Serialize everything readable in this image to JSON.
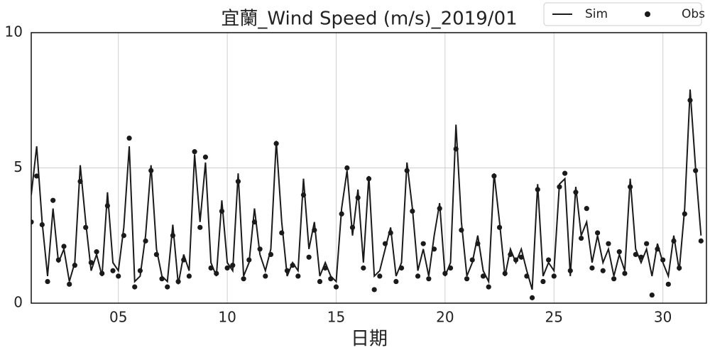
{
  "chart_data": {
    "type": "line",
    "title": "宜蘭_Wind Speed (m/s)_2019/01",
    "xlabel": "日期",
    "x": [
      1,
      1.25,
      1.5,
      1.75,
      2,
      2.25,
      2.5,
      2.75,
      3,
      3.25,
      3.5,
      3.75,
      4,
      4.25,
      4.5,
      4.75,
      5,
      5.25,
      5.5,
      5.75,
      6,
      6.25,
      6.5,
      6.75,
      7,
      7.25,
      7.5,
      7.75,
      8,
      8.25,
      8.5,
      8.75,
      9,
      9.25,
      9.5,
      9.75,
      10,
      10.25,
      10.5,
      10.75,
      11,
      11.25,
      11.5,
      11.75,
      12,
      12.25,
      12.5,
      12.75,
      13,
      13.25,
      13.5,
      13.75,
      14,
      14.25,
      14.5,
      14.75,
      15,
      15.25,
      15.5,
      15.75,
      16,
      16.25,
      16.5,
      16.75,
      17,
      17.25,
      17.5,
      17.75,
      18,
      18.25,
      18.5,
      18.75,
      19,
      19.25,
      19.5,
      19.75,
      20,
      20.25,
      20.5,
      20.75,
      21,
      21.25,
      21.5,
      21.75,
      22,
      22.25,
      22.5,
      22.75,
      23,
      23.25,
      23.5,
      23.75,
      24,
      24.25,
      24.5,
      24.75,
      25,
      25.25,
      25.5,
      25.75,
      26,
      26.25,
      26.5,
      26.75,
      27,
      27.25,
      27.5,
      27.75,
      28,
      28.25,
      28.5,
      28.75,
      29,
      29.25,
      29.5,
      29.75,
      30,
      30.25,
      30.5,
      30.75,
      31,
      31.25,
      31.5,
      31.75
    ],
    "series": [
      {
        "name": "Sim",
        "kind": "line",
        "color": "#1a1a1a",
        "values": [
          4.0,
          5.8,
          3.0,
          1.0,
          3.5,
          1.5,
          2.0,
          0.8,
          1.5,
          5.1,
          3.0,
          1.2,
          1.8,
          1.0,
          4.1,
          1.5,
          1.2,
          2.8,
          5.8,
          0.8,
          1.0,
          2.5,
          5.1,
          2.0,
          1.0,
          0.8,
          2.9,
          0.7,
          1.8,
          1.2,
          5.5,
          3.0,
          5.2,
          1.5,
          1.0,
          3.8,
          1.5,
          1.2,
          4.8,
          1.0,
          1.5,
          3.5,
          1.8,
          1.2,
          2.0,
          6.0,
          3.0,
          1.0,
          1.5,
          1.2,
          4.6,
          2.0,
          3.0,
          1.0,
          1.5,
          1.0,
          0.8,
          3.5,
          4.9,
          2.5,
          4.2,
          1.5,
          4.7,
          1.0,
          1.2,
          2.0,
          2.8,
          1.0,
          1.5,
          5.2,
          3.5,
          1.2,
          2.0,
          1.0,
          2.5,
          3.7,
          1.0,
          1.5,
          6.6,
          3.0,
          1.0,
          1.5,
          2.5,
          1.2,
          0.8,
          4.8,
          3.0,
          1.0,
          2.0,
          1.5,
          2.0,
          1.2,
          0.5,
          4.4,
          1.0,
          1.5,
          1.2,
          4.4,
          4.6,
          1.0,
          4.3,
          2.5,
          3.0,
          1.5,
          2.5,
          1.5,
          2.0,
          1.0,
          1.8,
          1.2,
          4.6,
          2.0,
          1.5,
          2.0,
          1.0,
          2.2,
          1.5,
          1.0,
          2.5,
          1.2,
          3.5,
          7.9,
          5.0,
          2.5
        ]
      },
      {
        "name": "Obs",
        "kind": "scatter",
        "color": "#1a1a1a",
        "values": [
          3.0,
          4.7,
          2.9,
          0.8,
          3.8,
          1.6,
          2.1,
          0.7,
          1.4,
          4.5,
          2.8,
          1.5,
          1.9,
          1.1,
          3.6,
          1.2,
          1.0,
          2.5,
          6.1,
          0.6,
          1.2,
          2.3,
          4.9,
          1.8,
          0.9,
          0.6,
          2.5,
          0.8,
          1.6,
          1.0,
          5.6,
          2.8,
          5.4,
          1.3,
          1.1,
          3.4,
          1.3,
          1.4,
          4.5,
          0.9,
          1.6,
          3.0,
          2.0,
          1.0,
          1.8,
          5.9,
          2.6,
          1.2,
          1.4,
          1.0,
          4.0,
          1.7,
          2.7,
          0.8,
          1.3,
          0.9,
          0.6,
          3.3,
          5.0,
          2.8,
          3.9,
          1.3,
          4.6,
          0.5,
          1.0,
          2.2,
          2.6,
          0.8,
          1.3,
          4.9,
          3.4,
          1.0,
          2.2,
          0.9,
          2.0,
          3.5,
          1.1,
          1.3,
          5.7,
          2.7,
          0.9,
          1.6,
          2.2,
          1.0,
          0.6,
          4.7,
          2.8,
          1.1,
          1.8,
          1.6,
          1.7,
          1.0,
          0.2,
          4.2,
          0.8,
          1.6,
          1.0,
          4.3,
          4.8,
          1.2,
          4.1,
          2.4,
          3.5,
          1.3,
          2.6,
          1.2,
          2.2,
          0.9,
          1.9,
          1.1,
          4.3,
          1.8,
          1.7,
          2.2,
          0.3,
          2.0,
          1.6,
          0.7,
          2.3,
          1.3,
          3.3,
          7.5,
          4.9,
          2.3
        ]
      }
    ],
    "xlim": [
      1,
      32
    ],
    "xticks": [
      {
        "value": 5,
        "label": "05"
      },
      10,
      15,
      20,
      25,
      30
    ],
    "ylim": [
      0,
      10
    ],
    "yticks": [
      0,
      5,
      10
    ],
    "grid": true,
    "legend": "upper right"
  }
}
